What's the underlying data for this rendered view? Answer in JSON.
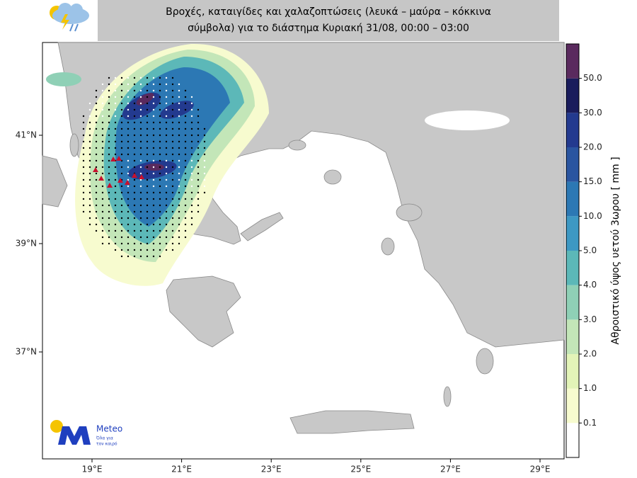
{
  "header": {
    "title_lines": [
      "Βροχές, καταιγίδες και χαλαζοπτώσεις (λευκά – μαύρα – κόκκινα",
      "σύμβολα) για το διάστημα Κυριακή 31/08, 00:00 – 03:00"
    ]
  },
  "map": {
    "lat_ticks": [
      {
        "value": 41,
        "label": "41°N"
      },
      {
        "value": 39,
        "label": "39°N"
      },
      {
        "value": 37,
        "label": "37°N"
      }
    ],
    "lon_ticks": [
      {
        "value": 19,
        "label": "19°E"
      },
      {
        "value": 21,
        "label": "21°E"
      },
      {
        "value": 23,
        "label": "23°E"
      },
      {
        "value": 25,
        "label": "25°E"
      },
      {
        "value": 27,
        "label": "27°E"
      },
      {
        "value": 29,
        "label": "29°E"
      }
    ]
  },
  "colorbar": {
    "title": "Αθροιστικό ύψος υετού 3ωρου [ mm ]",
    "levels": [
      {
        "value": 0.1,
        "label": "0.1"
      },
      {
        "value": 1,
        "label": "1.0"
      },
      {
        "value": 2,
        "label": "2.0"
      },
      {
        "value": 3,
        "label": "3.0"
      },
      {
        "value": 4,
        "label": "4.0"
      },
      {
        "value": 5,
        "label": "5.0"
      },
      {
        "value": 10,
        "label": "10.0"
      },
      {
        "value": 15,
        "label": "15.0"
      },
      {
        "value": 20,
        "label": "20.0"
      },
      {
        "value": 30,
        "label": "30.0"
      },
      {
        "value": 50,
        "label": "50.0"
      }
    ],
    "colors": [
      "#ffffff",
      "#f7fbcf",
      "#e3f4b8",
      "#c3e6b8",
      "#8fd0b6",
      "#5cb8b8",
      "#3d98c3",
      "#2c78b4",
      "#2a55a0",
      "#233a8f",
      "#1a1c5c",
      "#5a2a5e"
    ]
  },
  "logo": {
    "name": "Meteo",
    "tagline_lines": [
      "Όλα για",
      "τον καιρό"
    ]
  }
}
